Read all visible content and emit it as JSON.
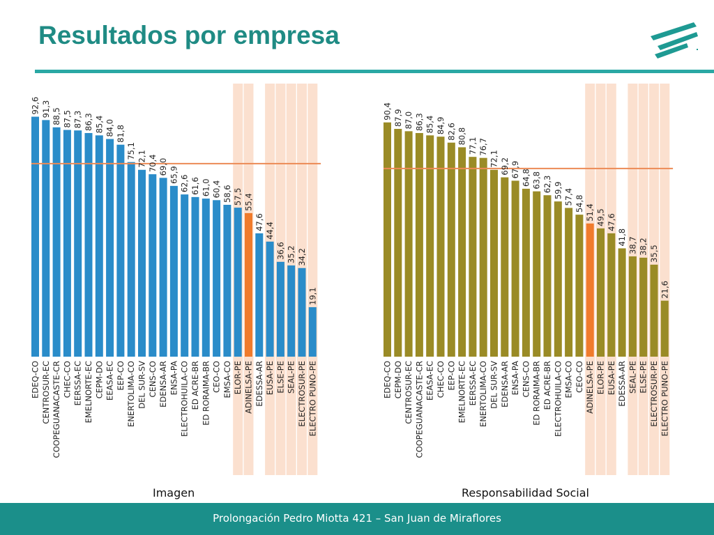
{
  "page": {
    "title": "Resultados por empresa",
    "footer": "Prolongación Pedro Miotta 421 – San Juan de Miraflores"
  },
  "colors": {
    "title": "#1f8b84",
    "rule": "#2aa8a4",
    "footer_bg": "#1b8f8a",
    "highlight": "#f07b2c",
    "highlight_band": "#fbe0cf",
    "reference_line": "#ec8a55"
  },
  "chart_data": [
    {
      "type": "bar",
      "title": "Imagen",
      "bar_color": "#2a8cc9",
      "highlight_category": "ADINELSA-PE",
      "banded_categories": [
        "ELOR-PE",
        "ADINELSA-PE",
        "EUSA-PE",
        "ELSE-PE",
        "SEAL-PE",
        "ELECTROSUR-PE",
        "ELECTRO PUNO-PE"
      ],
      "reference_value": 74.5,
      "ylim": [
        0,
        100
      ],
      "categories": [
        "EDEQ-CO",
        "CENTROSUR-EC",
        "COOPEGUANACASTE-CR",
        "CHEC-CO",
        "EERSSA-EC",
        "EMELNORTE-EC",
        "CEPM-DO",
        "EEASA-EC",
        "EEP-CO",
        "ENERTOLIMA-CO",
        "DEL SUR-SV",
        "CENS-CO",
        "EDENSA-AR",
        "ENSA-PA",
        "ELECTROHUILA-CO",
        "ED ACRE-BR",
        "ED RORAIMA-BR",
        "CEO-CO",
        "EMSA-CO",
        "ELOR-PE",
        "ADINELSA-PE",
        "EDESSA-AR",
        "EUSA-PE",
        "ELSE-PE",
        "SEAL-PE",
        "ELECTROSUR-PE",
        "ELECTRO PUNO-PE"
      ],
      "values": [
        92.6,
        91.3,
        88.5,
        87.5,
        87.3,
        86.3,
        85.4,
        84.0,
        81.8,
        75.1,
        72.1,
        70.4,
        69.0,
        65.9,
        62.6,
        61.6,
        61.0,
        60.4,
        58.6,
        57.5,
        55.4,
        47.6,
        44.4,
        36.6,
        35.2,
        34.2,
        19.1
      ],
      "labels": [
        "92,6",
        "91,3",
        "88,5",
        "87,5",
        "87,3",
        "86,3",
        "85,4",
        "84,0",
        "81,8",
        "75,1",
        "72,1",
        "70,4",
        "69,0",
        "65,9",
        "62,6",
        "61,6",
        "61,0",
        "60,4",
        "58,6",
        "57,5",
        "55,4",
        "47,6",
        "44,4",
        "36,6",
        "35,2",
        "34,2",
        "19,1"
      ]
    },
    {
      "type": "bar",
      "title": "Responsabilidad Social",
      "bar_color": "#9a8b26",
      "highlight_category": "ADINELSA-PE",
      "banded_categories": [
        "ADINELSA-PE",
        "ELOR-PE",
        "EUSA-PE",
        "SEAL-PE",
        "ELSE-PE",
        "ELECTROSUR-PE",
        "ELECTRO PUNO-PE"
      ],
      "reference_value": 72.6,
      "ylim": [
        0,
        100
      ],
      "categories": [
        "EDEQ-CO",
        "CEPM-DO",
        "CENTROSUR-EC",
        "COOPEGUANACASTE-CR",
        "EEASA-EC",
        "CHEC-CO",
        "EEP-CO",
        "EMELNORTE-EC",
        "EERSSA-EC",
        "ENERTOLIMA-CO",
        "DEL SUR-SV",
        "EDENSA-AR",
        "ENSA-PA",
        "CENS-CO",
        "ED RORAIMA-BR",
        "ED ACRE-BR",
        "ELECTROHUILA-CO",
        "EMSA-CO",
        "CEO-CO",
        "ADINELSA-PE",
        "ELOR-PE",
        "EUSA-PE",
        "EDESSA-AR",
        "SEAL-PE",
        "ELSE-PE",
        "ELECTROSUR-PE",
        "ELECTRO PUNO-PE"
      ],
      "values": [
        90.4,
        87.9,
        87.0,
        86.3,
        85.4,
        84.9,
        82.6,
        80.8,
        77.1,
        76.7,
        72.1,
        69.2,
        67.9,
        64.8,
        63.8,
        62.3,
        59.9,
        57.4,
        54.8,
        51.4,
        49.5,
        47.6,
        41.8,
        38.7,
        38.2,
        35.5,
        21.6
      ],
      "labels": [
        "90,4",
        "87,9",
        "87,0",
        "86,3",
        "85,4",
        "84,9",
        "82,6",
        "80,8",
        "77,1",
        "76,7",
        "72,1",
        "69,2",
        "67,9",
        "64,8",
        "63,8",
        "62,3",
        "59,9",
        "57,4",
        "54,8",
        "51,4",
        "49,5",
        "47,6",
        "41,8",
        "38,7",
        "38,2",
        "35,5",
        "21,6"
      ]
    }
  ]
}
